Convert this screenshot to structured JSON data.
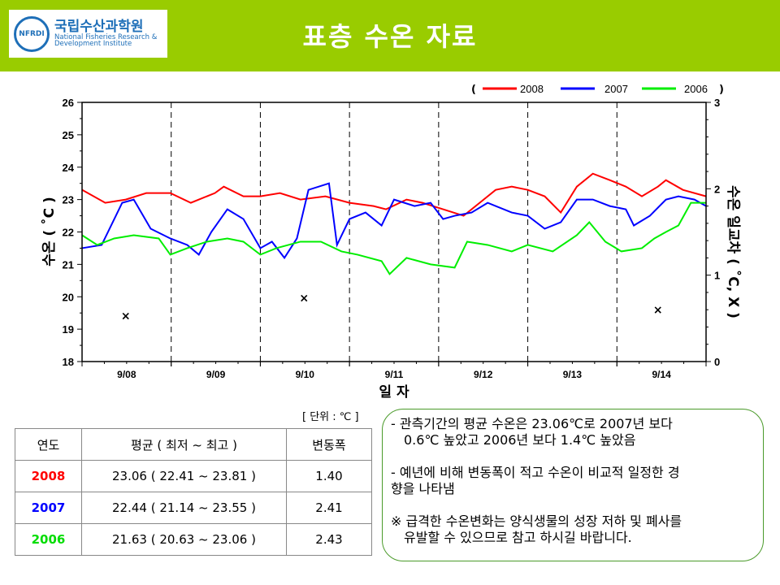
{
  "header": {
    "title": "표층 수온 자료",
    "logo_kr": "국립수산과학원",
    "logo_en1": "National Fisheries Research &",
    "logo_en2": "Development Institute",
    "logo_seal": "NFRDI",
    "bg": "#99cc00"
  },
  "chart_data": {
    "type": "line",
    "xlabel": "일 자",
    "ylabel": "수온 ( ˚C )",
    "y2label": "수온 일교차 ( ˚C, X )",
    "ylim": [
      18,
      26
    ],
    "y2lim": [
      0,
      3
    ],
    "xlim": [
      0,
      7
    ],
    "yticks": [
      "18",
      "19",
      "20",
      "21",
      "22",
      "23",
      "24",
      "25",
      "26"
    ],
    "y2ticks": [
      "0",
      "1",
      "2",
      "3"
    ],
    "xticks": [
      "9/08",
      "9/09",
      "9/10",
      "9/11",
      "9/12",
      "9/13",
      "9/14"
    ],
    "legend": {
      "open": "(",
      "close": ")",
      "placement": "top-right"
    },
    "series": [
      {
        "name": "2008",
        "color": "#ff0000",
        "points": [
          [
            0,
            23.3
          ],
          [
            0.26,
            22.9
          ],
          [
            0.49,
            23.0
          ],
          [
            0.72,
            23.2
          ],
          [
            0.99,
            23.2
          ],
          [
            1.22,
            22.9
          ],
          [
            1.49,
            23.2
          ],
          [
            1.59,
            23.4
          ],
          [
            1.81,
            23.1
          ],
          [
            2.0,
            23.1
          ],
          [
            2.22,
            23.2
          ],
          [
            2.45,
            23.0
          ],
          [
            2.73,
            23.1
          ],
          [
            3.0,
            22.9
          ],
          [
            3.27,
            22.8
          ],
          [
            3.41,
            22.7
          ],
          [
            3.64,
            23.0
          ],
          [
            3.82,
            22.9
          ],
          [
            4.05,
            22.7
          ],
          [
            4.28,
            22.5
          ],
          [
            4.46,
            22.9
          ],
          [
            4.64,
            23.3
          ],
          [
            4.82,
            23.4
          ],
          [
            5.0,
            23.3
          ],
          [
            5.19,
            23.1
          ],
          [
            5.37,
            22.6
          ],
          [
            5.55,
            23.4
          ],
          [
            5.73,
            23.8
          ],
          [
            5.92,
            23.6
          ],
          [
            6.1,
            23.4
          ],
          [
            6.28,
            23.1
          ],
          [
            6.46,
            23.4
          ],
          [
            6.55,
            23.6
          ],
          [
            6.74,
            23.3
          ],
          [
            7,
            23.1
          ]
        ]
      },
      {
        "name": "2007",
        "color": "#0000ff",
        "points": [
          [
            0,
            21.5
          ],
          [
            0.22,
            21.6
          ],
          [
            0.45,
            22.9
          ],
          [
            0.58,
            23.0
          ],
          [
            0.77,
            22.1
          ],
          [
            0.99,
            21.8
          ],
          [
            1.18,
            21.6
          ],
          [
            1.31,
            21.3
          ],
          [
            1.45,
            22.0
          ],
          [
            1.63,
            22.7
          ],
          [
            1.81,
            22.4
          ],
          [
            2.0,
            21.5
          ],
          [
            2.13,
            21.7
          ],
          [
            2.27,
            21.2
          ],
          [
            2.41,
            21.8
          ],
          [
            2.54,
            23.3
          ],
          [
            2.77,
            23.5
          ],
          [
            2.86,
            21.6
          ],
          [
            3.0,
            22.4
          ],
          [
            3.18,
            22.6
          ],
          [
            3.36,
            22.2
          ],
          [
            3.5,
            23.0
          ],
          [
            3.73,
            22.8
          ],
          [
            3.91,
            22.9
          ],
          [
            4.05,
            22.4
          ],
          [
            4.18,
            22.5
          ],
          [
            4.37,
            22.6
          ],
          [
            4.55,
            22.9
          ],
          [
            4.82,
            22.6
          ],
          [
            5.0,
            22.5
          ],
          [
            5.19,
            22.1
          ],
          [
            5.37,
            22.3
          ],
          [
            5.55,
            23.0
          ],
          [
            5.73,
            23.0
          ],
          [
            5.92,
            22.8
          ],
          [
            6.1,
            22.7
          ],
          [
            6.19,
            22.2
          ],
          [
            6.37,
            22.5
          ],
          [
            6.55,
            23.0
          ],
          [
            6.69,
            23.1
          ],
          [
            6.87,
            23.0
          ],
          [
            7,
            22.8
          ]
        ]
      },
      {
        "name": "2006",
        "color": "#00ee00",
        "points": [
          [
            0,
            21.9
          ],
          [
            0.17,
            21.6
          ],
          [
            0.36,
            21.8
          ],
          [
            0.58,
            21.9
          ],
          [
            0.86,
            21.8
          ],
          [
            0.99,
            21.3
          ],
          [
            1.18,
            21.5
          ],
          [
            1.4,
            21.7
          ],
          [
            1.63,
            21.8
          ],
          [
            1.81,
            21.7
          ],
          [
            2.0,
            21.3
          ],
          [
            2.18,
            21.5
          ],
          [
            2.45,
            21.7
          ],
          [
            2.68,
            21.7
          ],
          [
            2.91,
            21.4
          ],
          [
            3.09,
            21.3
          ],
          [
            3.36,
            21.1
          ],
          [
            3.45,
            20.7
          ],
          [
            3.64,
            21.2
          ],
          [
            3.91,
            21.0
          ],
          [
            4.18,
            20.9
          ],
          [
            4.32,
            21.7
          ],
          [
            4.55,
            21.6
          ],
          [
            4.82,
            21.4
          ],
          [
            5.0,
            21.6
          ],
          [
            5.28,
            21.4
          ],
          [
            5.55,
            21.9
          ],
          [
            5.69,
            22.3
          ],
          [
            5.87,
            21.7
          ],
          [
            6.05,
            21.4
          ],
          [
            6.28,
            21.5
          ],
          [
            6.42,
            21.8
          ],
          [
            6.55,
            22.0
          ],
          [
            6.69,
            22.2
          ],
          [
            6.83,
            22.9
          ],
          [
            7,
            22.9
          ]
        ]
      },
      {
        "name": "daily-range",
        "marker": "x",
        "axis": "right",
        "color": "#000000",
        "points": [
          [
            0.49,
            0.53
          ],
          [
            2.49,
            0.74
          ],
          [
            6.46,
            0.6
          ]
        ]
      }
    ]
  },
  "table": {
    "unit": "[ 단위 : ℃ ]",
    "headers": [
      "연도",
      "평균 ( 최저 ~ 최고 )",
      "변동폭"
    ],
    "rows": [
      {
        "year": "2008",
        "color": "#ff0000",
        "avg": "23.06 ( 22.41 ~ 23.81 )",
        "range": "1.40"
      },
      {
        "year": "2007",
        "color": "#0000ff",
        "avg": "22.44 ( 21.14 ~ 23.55 )",
        "range": "2.41"
      },
      {
        "year": "2006",
        "color": "#00dd00",
        "avg": "21.63 ( 20.63 ~ 23.06 )",
        "range": "2.43"
      }
    ]
  },
  "notes": {
    "p1a": "- 관측기간의 평균 수온은 23.06℃로  2007년 보다",
    "p1b": "0.6℃ 높았고 2006년 보다 1.4℃ 높았음",
    "p2a": "- 예년에 비해 변동폭이 적고 수온이 비교적 일정한 경",
    "p2b": "향을 나타냄",
    "p3a": "※ 급격한 수온변화는 양식생물의 성장 저하 및 폐사를",
    "p3b": "유발할 수 있으므로 참고 하시길 바랍니다."
  }
}
